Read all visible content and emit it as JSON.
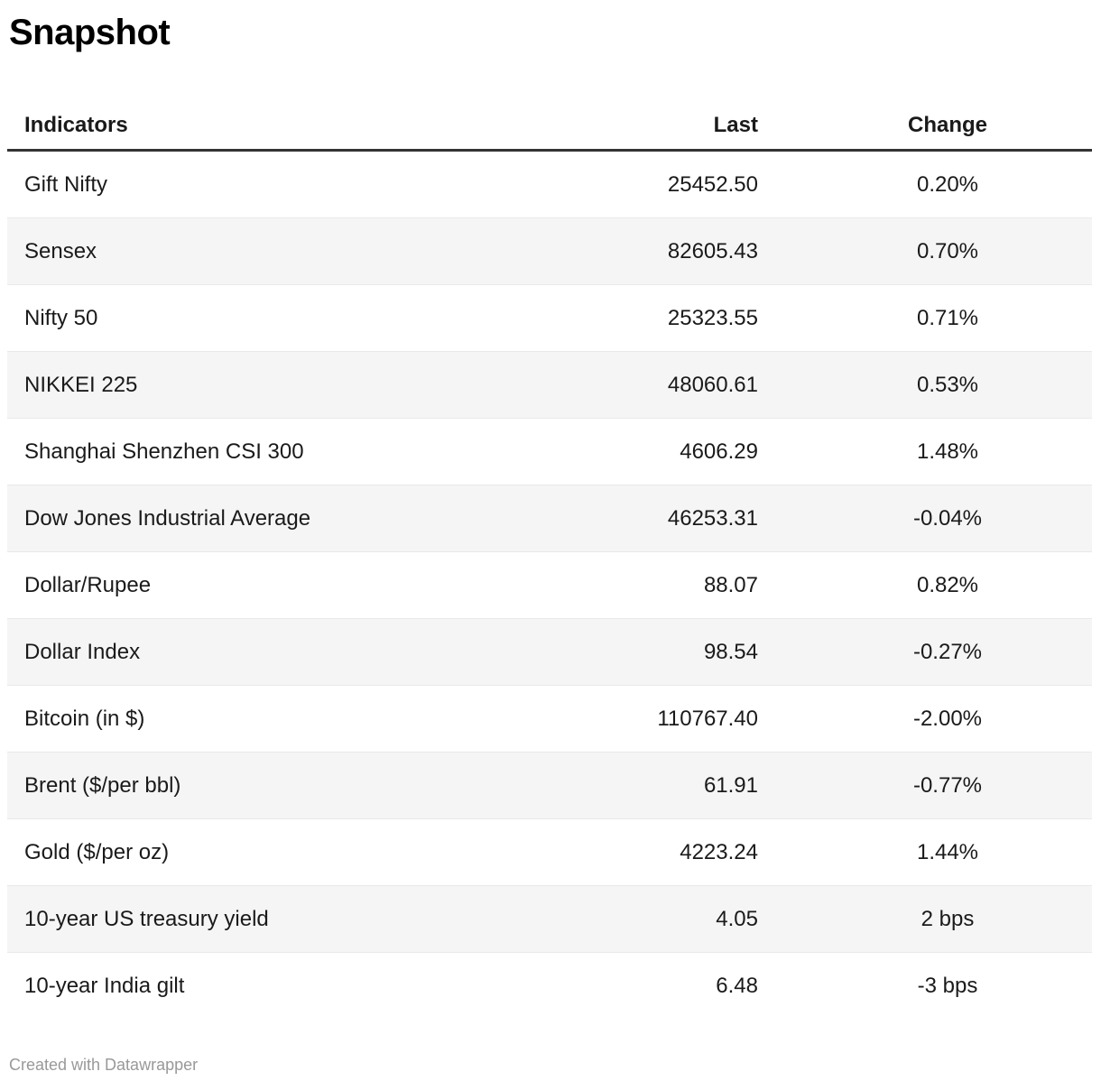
{
  "title": "Snapshot",
  "footer": {
    "credit": "Created with Datawrapper"
  },
  "colors": {
    "row_alt_bg": "#f5f5f5",
    "header_rule": "#333333",
    "text": "#1a1a1a",
    "footer_text": "#999999"
  },
  "chart_data": {
    "type": "table",
    "title": "Snapshot",
    "columns": [
      "Indicators",
      "Last",
      "Change"
    ],
    "column_align": [
      "left",
      "right",
      "center"
    ],
    "rows": [
      {
        "indicator": "Gift Nifty",
        "last": "25452.50",
        "change": "0.20%"
      },
      {
        "indicator": "Sensex",
        "last": "82605.43",
        "change": "0.70%"
      },
      {
        "indicator": "Nifty 50",
        "last": "25323.55",
        "change": "0.71%"
      },
      {
        "indicator": "NIKKEI 225",
        "last": "48060.61",
        "change": "0.53%"
      },
      {
        "indicator": "Shanghai Shenzhen CSI 300",
        "last": "4606.29",
        "change": "1.48%"
      },
      {
        "indicator": "Dow Jones Industrial Average",
        "last": "46253.31",
        "change": "-0.04%"
      },
      {
        "indicator": "Dollar/Rupee",
        "last": "88.07",
        "change": "0.82%"
      },
      {
        "indicator": "Dollar Index",
        "last": "98.54",
        "change": "-0.27%"
      },
      {
        "indicator": "Bitcoin (in $)",
        "last": "110767.40",
        "change": "-2.00%"
      },
      {
        "indicator": "Brent ($/per bbl)",
        "last": "61.91",
        "change": "-0.77%"
      },
      {
        "indicator": "Gold ($/per oz)",
        "last": "4223.24",
        "change": "1.44%"
      },
      {
        "indicator": "10-year US treasury yield",
        "last": "4.05",
        "change": "2 bps"
      },
      {
        "indicator": "10-year India gilt",
        "last": "6.48",
        "change": "-3 bps"
      }
    ]
  }
}
